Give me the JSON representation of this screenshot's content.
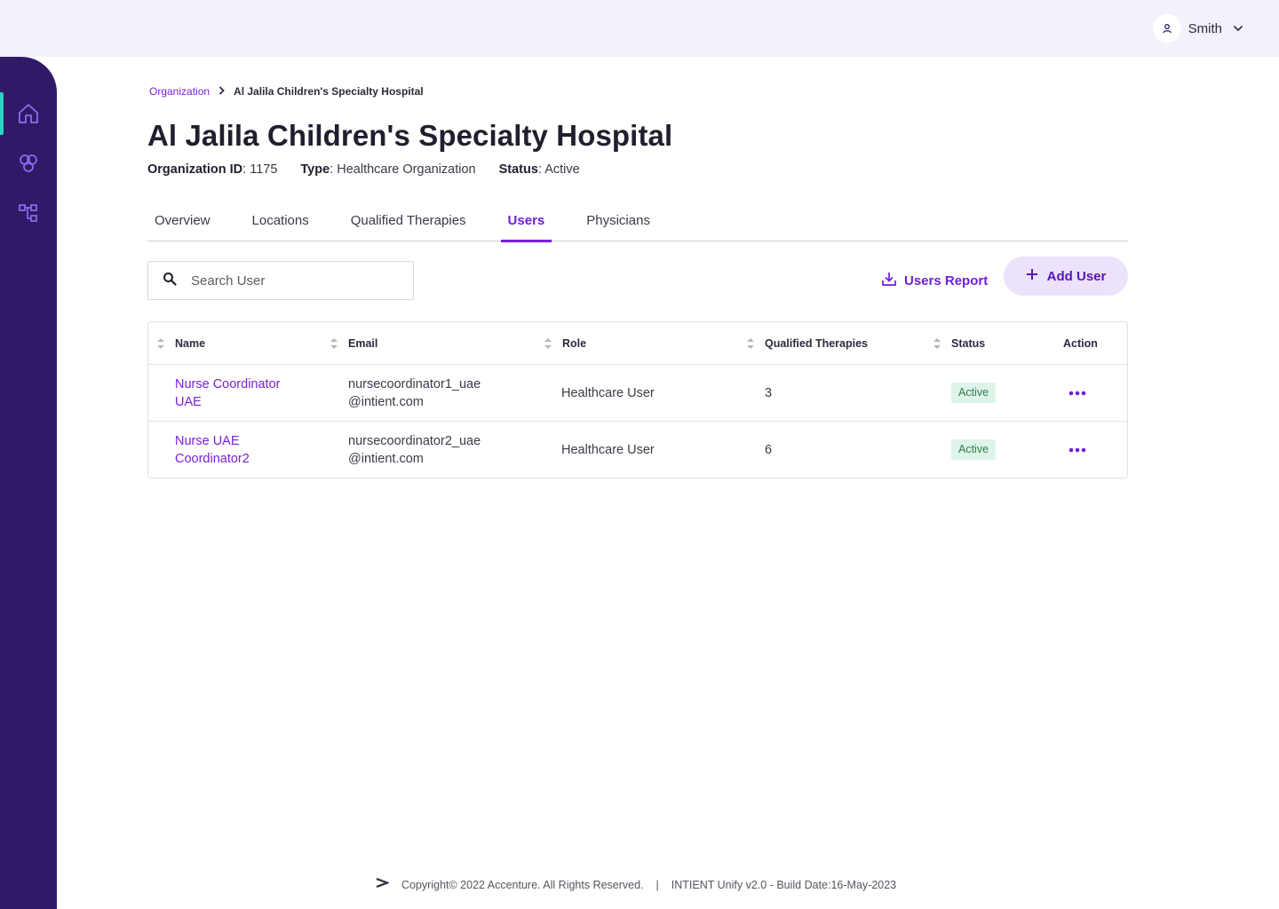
{
  "header": {
    "user_name": "Smith",
    "user_icon": "user-icon",
    "dropdown_icon": "chevron-down-icon"
  },
  "sidebar": {
    "items": [
      {
        "icon": "home-icon",
        "active": true
      },
      {
        "icon": "therapies-icon",
        "active": false
      },
      {
        "icon": "hierarchy-icon",
        "active": false
      }
    ],
    "accent_color": "#2ad4c4",
    "background_color": "#301966"
  },
  "breadcrumb": {
    "parent": "Organization",
    "current": "Al Jalila Children's Specialty Hospital"
  },
  "page": {
    "title": "Al Jalila Children's Specialty Hospital",
    "meta": {
      "org_id_label": "Organization ID",
      "org_id_value": ": 1175",
      "type_label": "Type",
      "type_value": ": Healthcare Organization",
      "status_label": "Status",
      "status_value": ": Active"
    }
  },
  "tabs": [
    {
      "label": "Overview",
      "active": false
    },
    {
      "label": "Locations",
      "active": false
    },
    {
      "label": "Qualified Therapies",
      "active": false
    },
    {
      "label": "Users",
      "active": true
    },
    {
      "label": "Physicians",
      "active": false
    }
  ],
  "toolbar": {
    "search_placeholder": "Search User",
    "search_value": "",
    "report_label": "Users Report",
    "add_label": "Add User"
  },
  "table": {
    "columns": [
      "Name",
      "Email",
      "Role",
      "Qualified Therapies",
      "Status",
      "Action"
    ],
    "rows": [
      {
        "name_line1": "Nurse Coordinator",
        "name_line2": "UAE",
        "email_line1": "nursecoordinator1_uae",
        "email_line2": "@intient.com",
        "role": "Healthcare User",
        "therapies": "3",
        "status": "Active"
      },
      {
        "name_line1": "Nurse UAE",
        "name_line2": "Coordinator2",
        "email_line1": "nursecoordinator2_uae",
        "email_line2": "@intient.com",
        "role": "Healthcare User",
        "therapies": "6",
        "status": "Active"
      }
    ]
  },
  "footer": {
    "copyright": "Copyright© 2022 Accenture. All Rights Reserved.",
    "separator": "|",
    "build": "INTIENT Unify v2.0 - Build Date:16-May-2023"
  },
  "colors": {
    "brand_purple": "#7b1fd8",
    "topbar_bg": "#f4f1fd",
    "badge_bg": "#dff4e8",
    "badge_text": "#2e7a4f"
  }
}
